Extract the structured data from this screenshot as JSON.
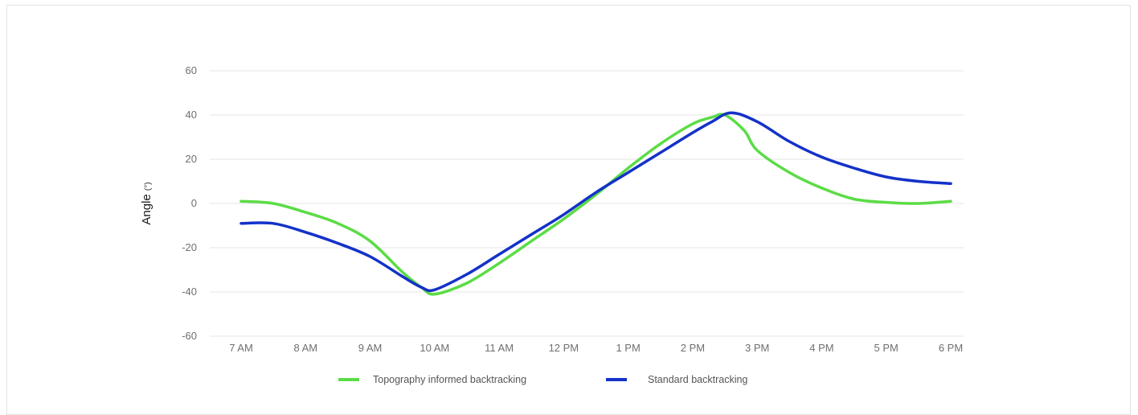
{
  "chart_data": {
    "type": "line",
    "ylabel": "Angle",
    "ylabel_unit": "(°)",
    "ylim": [
      -60,
      60
    ],
    "yticks": [
      -60,
      -40,
      -20,
      0,
      20,
      40,
      60
    ],
    "x_tick_labels": [
      "7 AM",
      "8 AM",
      "9 AM",
      "10 AM",
      "11 AM",
      "12 PM",
      "1 PM",
      "2 PM",
      "3 PM",
      "4 PM",
      "5 PM",
      "6 PM"
    ],
    "grid": "horizontal",
    "legend_position": "bottom-center",
    "series": [
      {
        "name": "Topography informed backtracking",
        "color": "#5bdc45",
        "x": [
          7.0,
          7.5,
          8.0,
          8.5,
          9.0,
          9.5,
          9.8,
          10.0,
          10.5,
          11.0,
          11.5,
          12.0,
          12.5,
          13.0,
          13.5,
          14.0,
          14.3,
          14.5,
          14.8,
          15.0,
          15.5,
          16.0,
          16.5,
          17.0,
          17.5,
          18.0
        ],
        "y": [
          1,
          0,
          -4,
          -9,
          -17,
          -31,
          -38,
          -41,
          -36,
          -27,
          -17,
          -7,
          4,
          16,
          27,
          36,
          39,
          40,
          33,
          24,
          14,
          7,
          2,
          0.5,
          0,
          1
        ]
      },
      {
        "name": "Standard backtracking",
        "color": "#1432c8",
        "x": [
          7.0,
          7.5,
          8.0,
          8.5,
          9.0,
          9.5,
          9.8,
          10.0,
          10.5,
          11.0,
          11.5,
          12.0,
          12.5,
          13.0,
          13.5,
          14.0,
          14.3,
          14.6,
          15.0,
          15.5,
          16.0,
          16.5,
          17.0,
          17.5,
          18.0
        ],
        "y": [
          -9,
          -9,
          -13,
          -18,
          -24,
          -33,
          -38,
          -39,
          -32,
          -23,
          -14,
          -5,
          5,
          14,
          23,
          32,
          37,
          41,
          37,
          28,
          21,
          16,
          12,
          10,
          9
        ]
      }
    ]
  }
}
